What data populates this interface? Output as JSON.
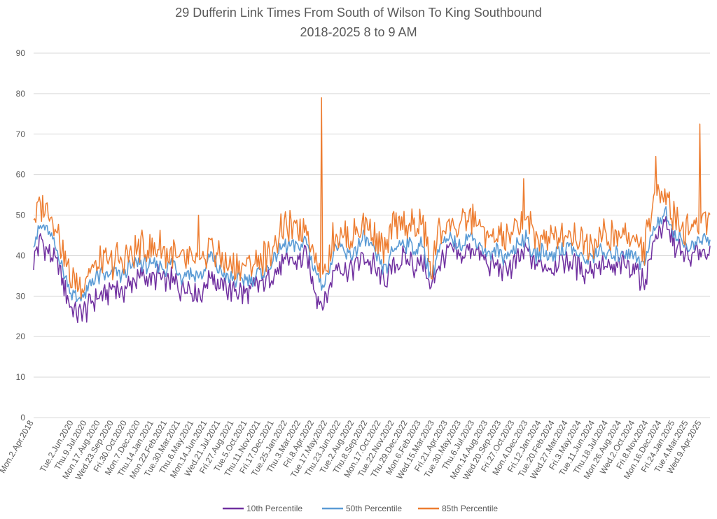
{
  "chart_data": {
    "type": "line",
    "title": "29 Dufferin Link Times From South of Wilson To King Southbound",
    "subtitle": "2018-2025 8 to 9 AM",
    "xlabel": "",
    "ylabel": "",
    "ylim": [
      0,
      90
    ],
    "yticks": [
      0,
      10,
      20,
      30,
      40,
      50,
      60,
      70,
      80,
      90
    ],
    "grid": true,
    "legend": "bottom",
    "x_tick_labels": [
      "Mon.2.Apr.2018",
      "Tue.2.Jun.2020",
      "Thu.9.Jul.2020",
      "Mon.17.Aug.2020",
      "Wed.23.Sep.2020",
      "Fri.30.Oct.2020",
      "Mon.7.Dec.2020",
      "Thu.14.Jan.2021",
      "Mon.22.Feb.2021",
      "Tue.30.Mar.2021",
      "Thu.6.May.2021",
      "Mon.14.Jun.2021",
      "Wed.21.Jul.2021",
      "Fri.27.Aug.2021",
      "Tue.5.Oct.2021",
      "Thu.11.Nov.2021",
      "Fri.17.Dec.2021",
      "Tue.25.Jan.2022",
      "Thu.3.Mar.2022",
      "Fri.8.Apr.2022",
      "Tue.17.May.2022",
      "Thu.23.Jun.2022",
      "Tue.2.Aug.2022",
      "Thu.8.Sep.2022",
      "Mon.17.Oct.2022",
      "Tue.22.Nov.2022",
      "Thu.29.Dec.2022",
      "Mon.6.Feb.2023",
      "Wed.15.Mar.2023",
      "Fri.21.Apr.2023",
      "Tue.30.May.2023",
      "Thu.6.Jul.2023",
      "Mon.14.Aug.2023",
      "Wed.20.Sep.2023",
      "Fri.27.Oct.2023",
      "Mon.4.Dec.2023",
      "Fri.12.Jan.2024",
      "Tue.20.Feb.2024",
      "Wed.27.Mar.2024",
      "Fri.3.May.2024",
      "Tue.11.Jun.2024",
      "Thu.18.Jul.2024",
      "Mon.26.Aug.2024",
      "Wed.2.Oct.2024",
      "Fri.8.Nov.2024",
      "Mon.16.Dec.2024",
      "Fri.24.Jan.2025",
      "Tue.4.Mar.2025",
      "Wed.9.Apr.2025"
    ],
    "series": [
      {
        "name": "10th Percentile",
        "color": "#7030a0",
        "anchors": [
          [
            0,
            39
          ],
          [
            1,
            44
          ],
          [
            2,
            41
          ],
          [
            3,
            38
          ],
          [
            4,
            34
          ],
          [
            5,
            27
          ],
          [
            6,
            25
          ],
          [
            7,
            26
          ],
          [
            8,
            29
          ],
          [
            9,
            30
          ],
          [
            10,
            31
          ],
          [
            11,
            32
          ],
          [
            12,
            31
          ],
          [
            13,
            33
          ],
          [
            14,
            34
          ],
          [
            15,
            35
          ],
          [
            16,
            34
          ],
          [
            17,
            35
          ],
          [
            18,
            33
          ],
          [
            19,
            34
          ],
          [
            20,
            32
          ],
          [
            21,
            33
          ],
          [
            22,
            31
          ],
          [
            23,
            31
          ],
          [
            24,
            36
          ],
          [
            25,
            33
          ],
          [
            26,
            32
          ],
          [
            27,
            31
          ],
          [
            28,
            31
          ],
          [
            29,
            30
          ],
          [
            30,
            32
          ],
          [
            31,
            33
          ],
          [
            32,
            34
          ],
          [
            33,
            36
          ],
          [
            34,
            38
          ],
          [
            35,
            39
          ],
          [
            36,
            38
          ],
          [
            37,
            41
          ],
          [
            38,
            33
          ],
          [
            39,
            28
          ],
          [
            40,
            30
          ],
          [
            41,
            38
          ],
          [
            42,
            37
          ],
          [
            43,
            36
          ],
          [
            44,
            38
          ],
          [
            45,
            40
          ],
          [
            46,
            38
          ],
          [
            47,
            35
          ],
          [
            48,
            34
          ],
          [
            49,
            38
          ],
          [
            50,
            39
          ],
          [
            51,
            39
          ],
          [
            52,
            37
          ],
          [
            53,
            39
          ],
          [
            54,
            31
          ],
          [
            55,
            38
          ],
          [
            56,
            40
          ],
          [
            57,
            41
          ],
          [
            58,
            39
          ],
          [
            59,
            42
          ],
          [
            60,
            41
          ],
          [
            61,
            39
          ],
          [
            62,
            37
          ],
          [
            63,
            38
          ],
          [
            64,
            36
          ],
          [
            65,
            37
          ],
          [
            66,
            39
          ],
          [
            67,
            42
          ],
          [
            68,
            37
          ],
          [
            69,
            38
          ],
          [
            70,
            37
          ],
          [
            71,
            38
          ],
          [
            72,
            39
          ],
          [
            73,
            39
          ],
          [
            74,
            37
          ],
          [
            75,
            36
          ],
          [
            76,
            37
          ],
          [
            77,
            38
          ],
          [
            78,
            37
          ],
          [
            79,
            36
          ],
          [
            80,
            38
          ],
          [
            81,
            38
          ],
          [
            82,
            37
          ],
          [
            83,
            33
          ],
          [
            84,
            41
          ],
          [
            85,
            46
          ],
          [
            86,
            48
          ],
          [
            87,
            43
          ],
          [
            88,
            41
          ],
          [
            89,
            39
          ],
          [
            90,
            40
          ],
          [
            91,
            42
          ],
          [
            92,
            41
          ]
        ]
      },
      {
        "name": "50th Percentile",
        "color": "#5b9bd5",
        "anchors": [
          [
            0,
            44
          ],
          [
            1,
            47
          ],
          [
            2,
            46
          ],
          [
            3,
            42
          ],
          [
            4,
            37
          ],
          [
            5,
            31
          ],
          [
            6,
            29
          ],
          [
            7,
            30
          ],
          [
            8,
            34
          ],
          [
            9,
            35
          ],
          [
            10,
            35
          ],
          [
            11,
            36
          ],
          [
            12,
            35
          ],
          [
            13,
            37
          ],
          [
            14,
            38
          ],
          [
            15,
            38
          ],
          [
            16,
            37
          ],
          [
            17,
            38
          ],
          [
            18,
            37
          ],
          [
            19,
            38
          ],
          [
            20,
            35
          ],
          [
            21,
            36
          ],
          [
            22,
            35
          ],
          [
            23,
            35
          ],
          [
            24,
            40
          ],
          [
            25,
            37
          ],
          [
            26,
            35
          ],
          [
            27,
            34
          ],
          [
            28,
            34
          ],
          [
            29,
            34
          ],
          [
            30,
            35
          ],
          [
            31,
            36
          ],
          [
            32,
            37
          ],
          [
            33,
            40
          ],
          [
            34,
            42
          ],
          [
            35,
            43
          ],
          [
            36,
            42
          ],
          [
            37,
            44
          ],
          [
            38,
            38
          ],
          [
            39,
            33
          ],
          [
            40,
            35
          ],
          [
            41,
            42
          ],
          [
            42,
            41
          ],
          [
            43,
            40
          ],
          [
            44,
            42
          ],
          [
            45,
            44
          ],
          [
            46,
            42
          ],
          [
            47,
            38
          ],
          [
            48,
            37
          ],
          [
            49,
            42
          ],
          [
            50,
            43
          ],
          [
            51,
            43
          ],
          [
            52,
            41
          ],
          [
            53,
            43
          ],
          [
            54,
            34
          ],
          [
            55,
            41
          ],
          [
            56,
            43
          ],
          [
            57,
            44
          ],
          [
            58,
            42
          ],
          [
            59,
            45
          ],
          [
            60,
            44
          ],
          [
            61,
            42
          ],
          [
            62,
            40
          ],
          [
            63,
            41
          ],
          [
            64,
            40
          ],
          [
            65,
            41
          ],
          [
            66,
            43
          ],
          [
            67,
            45
          ],
          [
            68,
            40
          ],
          [
            69,
            41
          ],
          [
            70,
            40
          ],
          [
            71,
            41
          ],
          [
            72,
            42
          ],
          [
            73,
            42
          ],
          [
            74,
            40
          ],
          [
            75,
            39
          ],
          [
            76,
            40
          ],
          [
            77,
            41
          ],
          [
            78,
            40
          ],
          [
            79,
            40
          ],
          [
            80,
            41
          ],
          [
            81,
            41
          ],
          [
            82,
            40
          ],
          [
            83,
            37
          ],
          [
            84,
            45
          ],
          [
            85,
            49
          ],
          [
            86,
            50
          ],
          [
            87,
            46
          ],
          [
            88,
            44
          ],
          [
            89,
            42
          ],
          [
            90,
            43
          ],
          [
            91,
            44
          ],
          [
            92,
            44
          ]
        ]
      },
      {
        "name": "85th Percentile",
        "color": "#ed7d31",
        "anchors": [
          [
            0,
            49
          ],
          [
            1,
            53
          ],
          [
            2,
            51
          ],
          [
            3,
            48
          ],
          [
            4,
            41
          ],
          [
            5,
            35
          ],
          [
            6,
            33
          ],
          [
            7,
            34
          ],
          [
            8,
            37
          ],
          [
            9,
            38
          ],
          [
            10,
            38
          ],
          [
            11,
            39
          ],
          [
            12,
            38
          ],
          [
            13,
            40
          ],
          [
            14,
            41
          ],
          [
            15,
            42
          ],
          [
            16,
            41
          ],
          [
            17,
            42
          ],
          [
            18,
            40
          ],
          [
            19,
            41
          ],
          [
            20,
            38
          ],
          [
            21,
            39
          ],
          [
            22,
            38
          ],
          [
            23,
            38
          ],
          [
            24,
            44
          ],
          [
            25,
            40
          ],
          [
            26,
            38
          ],
          [
            27,
            37
          ],
          [
            28,
            37
          ],
          [
            29,
            37
          ],
          [
            30,
            38
          ],
          [
            31,
            39
          ],
          [
            32,
            40
          ],
          [
            33,
            44
          ],
          [
            34,
            46
          ],
          [
            35,
            47
          ],
          [
            36,
            46
          ],
          [
            37,
            48
          ],
          [
            38,
            42
          ],
          [
            39,
            36
          ],
          [
            40,
            38
          ],
          [
            41,
            46
          ],
          [
            42,
            45
          ],
          [
            43,
            44
          ],
          [
            44,
            46
          ],
          [
            45,
            48
          ],
          [
            46,
            46
          ],
          [
            47,
            42
          ],
          [
            48,
            41
          ],
          [
            49,
            47
          ],
          [
            50,
            48
          ],
          [
            51,
            48
          ],
          [
            52,
            46
          ],
          [
            53,
            48
          ],
          [
            54,
            36
          ],
          [
            55,
            45
          ],
          [
            56,
            47
          ],
          [
            57,
            48
          ],
          [
            58,
            46
          ],
          [
            59,
            50
          ],
          [
            60,
            49
          ],
          [
            61,
            46
          ],
          [
            62,
            44
          ],
          [
            63,
            45
          ],
          [
            64,
            44
          ],
          [
            65,
            45
          ],
          [
            66,
            47
          ],
          [
            67,
            50
          ],
          [
            68,
            44
          ],
          [
            69,
            45
          ],
          [
            70,
            44
          ],
          [
            71,
            45
          ],
          [
            72,
            46
          ],
          [
            73,
            46
          ],
          [
            74,
            44
          ],
          [
            75,
            43
          ],
          [
            76,
            44
          ],
          [
            77,
            45
          ],
          [
            78,
            44
          ],
          [
            79,
            44
          ],
          [
            80,
            45
          ],
          [
            81,
            45
          ],
          [
            82,
            44
          ],
          [
            83,
            41
          ],
          [
            84,
            50
          ],
          [
            85,
            57
          ],
          [
            86,
            56
          ],
          [
            87,
            50
          ],
          [
            88,
            48
          ],
          [
            89,
            46
          ],
          [
            90,
            47
          ],
          [
            91,
            49
          ],
          [
            92,
            50
          ]
        ]
      }
    ],
    "annotations_peaks": [
      {
        "series": "85th Percentile",
        "x": 39.2,
        "y": 79
      },
      {
        "series": "85th Percentile",
        "x": 90.6,
        "y": 72.5
      },
      {
        "series": "85th Percentile",
        "x": 84.6,
        "y": 64.5
      },
      {
        "series": "85th Percentile",
        "x": 66.7,
        "y": 59
      },
      {
        "series": "85th Percentile",
        "x": 22.4,
        "y": 50
      }
    ]
  }
}
